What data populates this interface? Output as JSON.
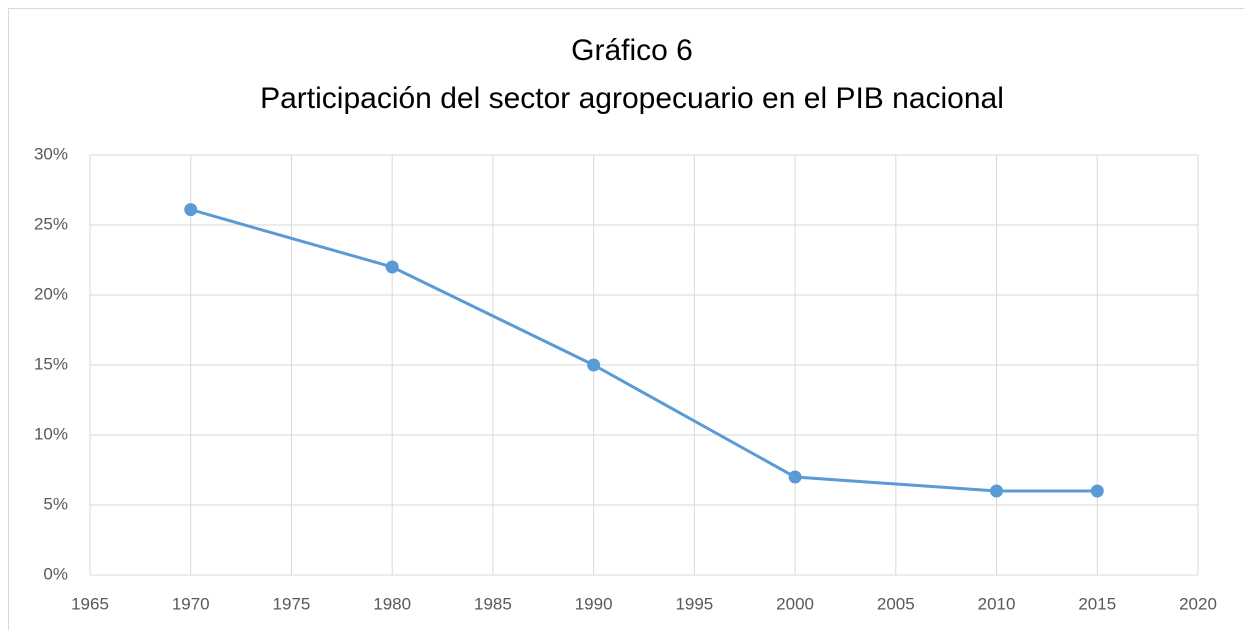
{
  "chart_data": {
    "type": "line",
    "title": [
      "Gráfico 6",
      "Participación del sector agropecuario en el PIB nacional"
    ],
    "x": [
      1970,
      1980,
      1990,
      2000,
      2010,
      2015
    ],
    "values": [
      26.1,
      22,
      15,
      7,
      6,
      6
    ],
    "color": "#5b9bd5",
    "xlim": [
      1965,
      2020
    ],
    "xticks": [
      1965,
      1970,
      1975,
      1980,
      1985,
      1990,
      1995,
      2000,
      2005,
      2010,
      2015,
      2020
    ],
    "ylim": [
      0,
      30
    ],
    "yticks": [
      {
        "value": 0,
        "label": "0%"
      },
      {
        "value": 5,
        "label": "5%"
      },
      {
        "value": 10,
        "label": "10%"
      },
      {
        "value": 15,
        "label": "15%"
      },
      {
        "value": 20,
        "label": "20%"
      },
      {
        "value": 25,
        "label": "25%"
      },
      {
        "value": 30,
        "label": "30%"
      }
    ],
    "grid": true
  }
}
